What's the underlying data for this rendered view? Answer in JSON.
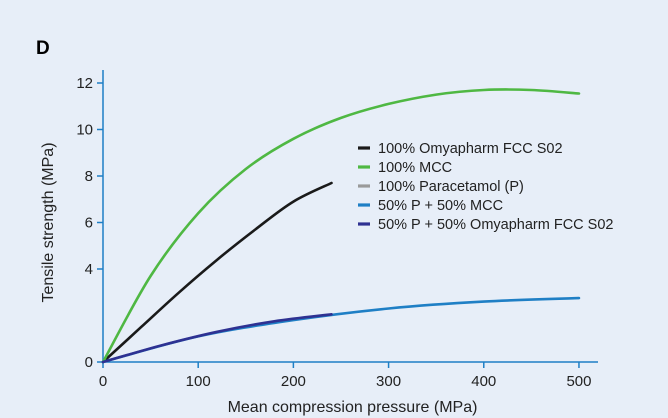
{
  "chart_data": {
    "type": "line",
    "panel_label": "D",
    "title": "",
    "xlabel": "Mean compression pressure (MPa)",
    "ylabel": "Tensile strength (MPa)",
    "xlim": [
      0,
      520
    ],
    "ylim": [
      0,
      12.6
    ],
    "xticks": [
      0,
      100,
      200,
      300,
      400,
      500
    ],
    "yticks": [
      0,
      4,
      6,
      8,
      10,
      12
    ],
    "grid": false,
    "legend_position": "right",
    "series": [
      {
        "name": "100% Omyapharm FCC S02",
        "color": "#1a1a1a",
        "x": [
          0,
          40,
          80,
          120,
          160,
          200,
          240
        ],
        "y": [
          0,
          1.5,
          3.0,
          4.4,
          5.7,
          6.9,
          7.7
        ]
      },
      {
        "name": "100% MCC",
        "color": "#4fb843",
        "x": [
          0,
          50,
          100,
          150,
          200,
          250,
          300,
          350,
          400,
          450,
          500
        ],
        "y": [
          0,
          3.7,
          6.4,
          8.3,
          9.6,
          10.5,
          11.1,
          11.5,
          11.7,
          11.7,
          11.55
        ]
      },
      {
        "name": "100% Paracetamol (P)",
        "color": "#9a9a9a",
        "x": [],
        "y": []
      },
      {
        "name": "50% P + 50% MCC",
        "color": "#1f7fc5",
        "x": [
          0,
          100,
          200,
          300,
          400,
          500
        ],
        "y": [
          0,
          1.1,
          1.8,
          2.3,
          2.6,
          2.75
        ]
      },
      {
        "name": "50% P + 50% Omyapharm FCC S02",
        "color": "#2e3192",
        "x": [
          0,
          60,
          120,
          180,
          240
        ],
        "y": [
          0,
          0.7,
          1.3,
          1.75,
          2.05
        ]
      }
    ]
  }
}
